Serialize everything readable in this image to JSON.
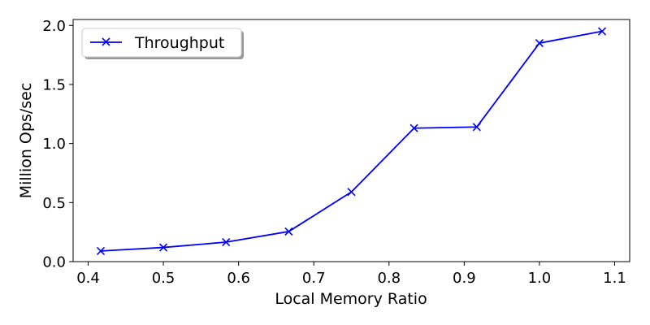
{
  "chart_data": {
    "type": "line",
    "title": "",
    "xlabel": "Local Memory Ratio",
    "ylabel": "Million Ops/sec",
    "xlim": [
      0.38,
      1.12
    ],
    "ylim": [
      0.0,
      2.05
    ],
    "xticks": [
      0.4,
      0.5,
      0.6,
      0.7,
      0.8,
      0.9,
      1.0,
      1.1
    ],
    "xtick_labels": [
      "0.4",
      "0.5",
      "0.6",
      "0.7",
      "0.8",
      "0.9",
      "1.0",
      "1.1"
    ],
    "yticks": [
      0.0,
      0.5,
      1.0,
      1.5,
      2.0
    ],
    "ytick_labels": [
      "0.0",
      "0.5",
      "1.0",
      "1.5",
      "2.0"
    ],
    "grid": false,
    "legend_position": "top-left",
    "series": [
      {
        "name": "Throughput",
        "color": "#0000ff",
        "marker": "x",
        "x": [
          0.4167,
          0.5,
          0.5833,
          0.6667,
          0.75,
          0.8333,
          0.9167,
          1.0,
          1.0833
        ],
        "y": [
          0.09,
          0.12,
          0.165,
          0.255,
          0.59,
          1.13,
          1.14,
          1.85,
          1.95
        ]
      }
    ]
  }
}
